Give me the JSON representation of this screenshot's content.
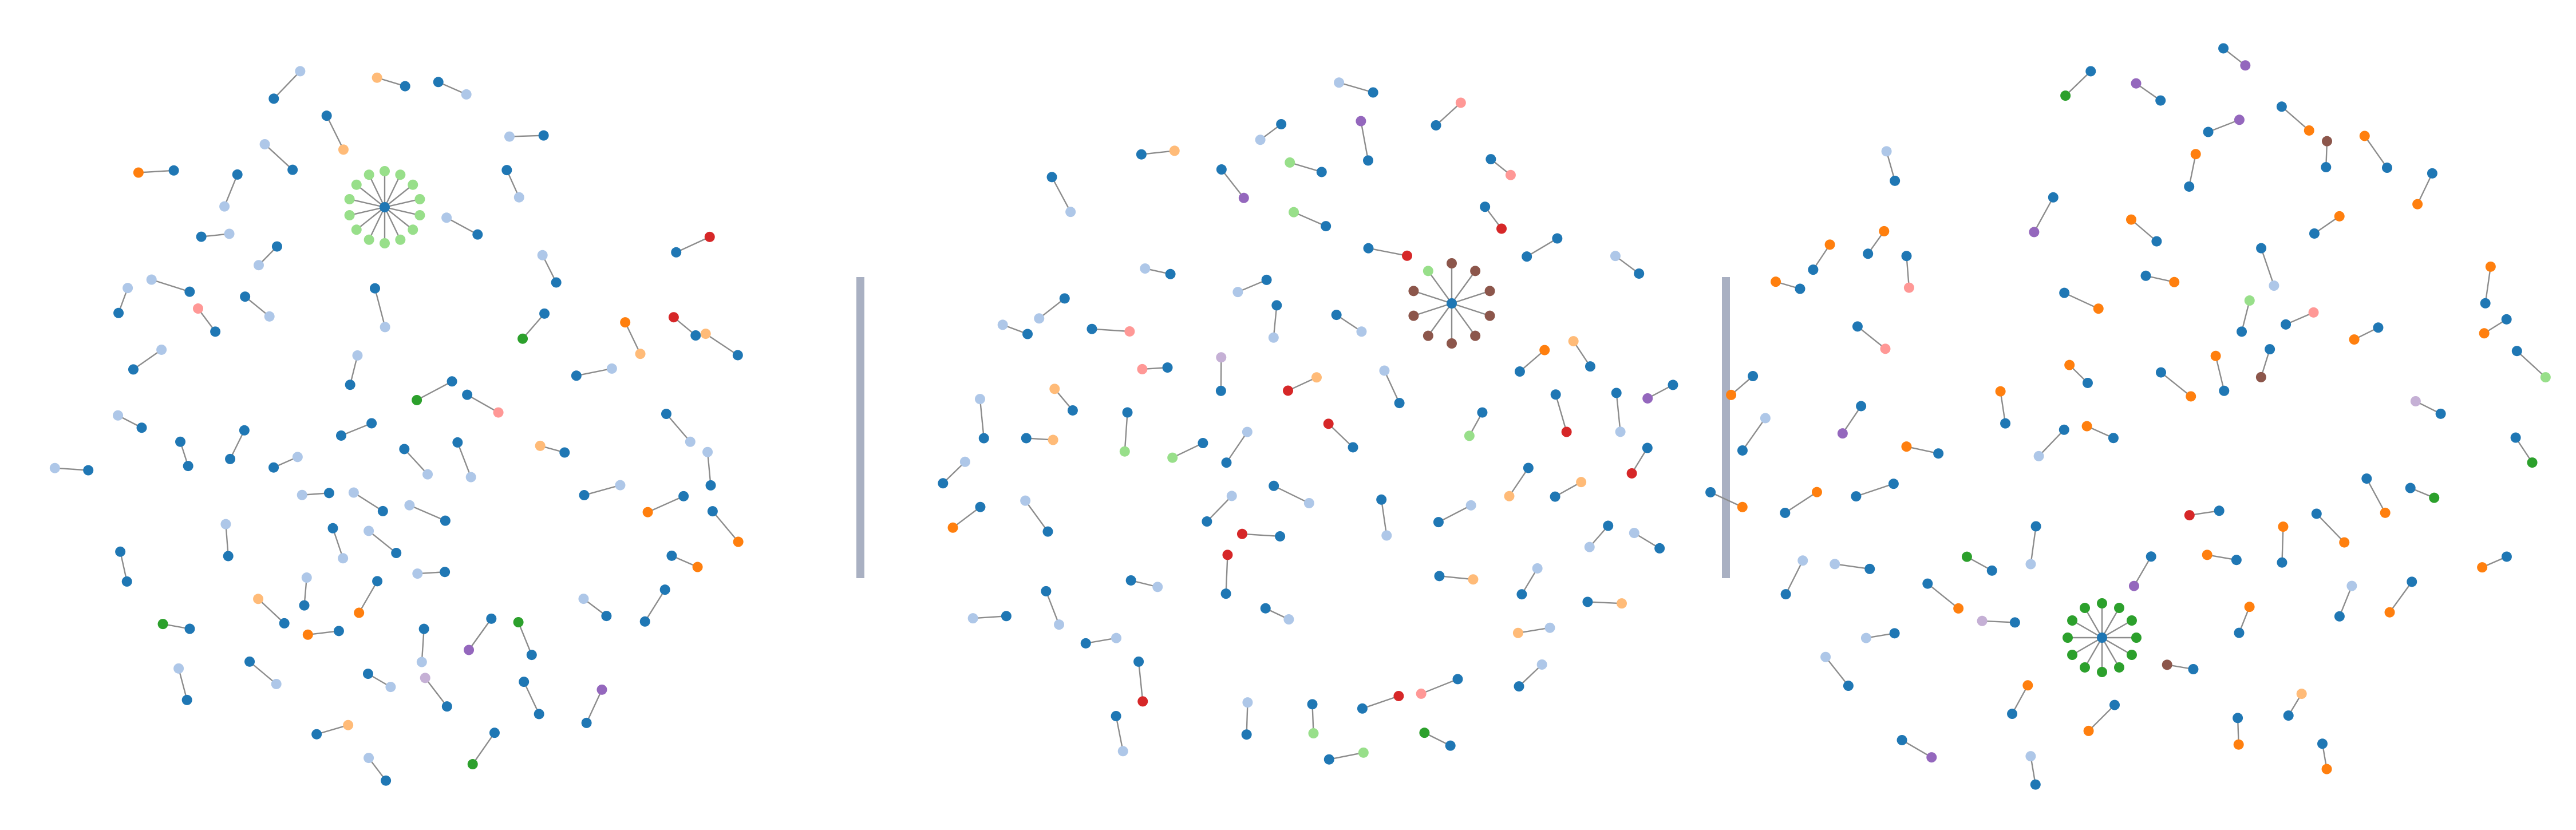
{
  "palette": {
    "edge": "#8c8c8c",
    "divider": "#a9b0c2",
    "background": "#ffffff",
    "blue": "#1f77b4",
    "lightblue": "#aec7e8",
    "orange": "#ff7f0e",
    "lightorange": "#ffbb78",
    "green": "#2ca02c",
    "lightgreen": "#98df8a",
    "red": "#d62728",
    "pink": "#ff9896",
    "purple": "#9467bd",
    "lavender": "#c5b0d5",
    "brown": "#8c564b"
  },
  "panels": [
    {
      "name": "left-graph",
      "star": {
        "center": "blue",
        "leaves": [
          "lightgreen",
          "lightgreen",
          "lightgreen",
          "lightgreen",
          "lightgreen",
          "lightgreen",
          "lightgreen",
          "lightgreen",
          "lightgreen",
          "lightgreen",
          "lightgreen",
          "lightgreen",
          "lightgreen",
          "lightgreen"
        ]
      },
      "pairs": [
        [
          "lightblue",
          "blue"
        ],
        [
          "blue",
          "orange"
        ],
        [
          "blue",
          "lightblue"
        ],
        [
          "blue",
          "green"
        ],
        [
          "purple",
          "blue"
        ],
        [
          "lightblue",
          "blue"
        ],
        [
          "blue",
          "lightblue"
        ],
        [
          "lightblue",
          "blue"
        ],
        [
          "blue",
          "lightblue"
        ],
        [
          "lightblue",
          "blue"
        ],
        [
          "blue",
          "lightblue"
        ],
        [
          "lightblue",
          "blue"
        ],
        [
          "blue",
          "lightblue"
        ],
        [
          "lightorange",
          "blue"
        ],
        [
          "blue",
          "blue"
        ],
        [
          "lightblue",
          "blue"
        ],
        [
          "blue",
          "lightblue"
        ],
        [
          "lightblue",
          "blue"
        ],
        [
          "blue",
          "orange"
        ],
        [
          "lightblue",
          "blue"
        ],
        [
          "lightblue",
          "blue"
        ],
        [
          "blue",
          "pink"
        ],
        [
          "lightblue",
          "blue"
        ],
        [
          "blue",
          "lightblue"
        ],
        [
          "blue",
          "blue"
        ],
        [
          "blue",
          "lightblue"
        ],
        [
          "blue",
          "lightblue"
        ],
        [
          "blue",
          "lightblue"
        ],
        [
          "blue",
          "red"
        ],
        [
          "blue",
          "orange"
        ],
        [
          "lightblue",
          "blue"
        ],
        [
          "lightorange",
          "blue"
        ],
        [
          "blue",
          "orange"
        ],
        [
          "blue",
          "blue"
        ],
        [
          "blue",
          "red"
        ],
        [
          "blue",
          "green"
        ],
        [
          "lightblue",
          "blue"
        ],
        [
          "blue",
          "lightblue"
        ],
        [
          "blue",
          "blue"
        ],
        [
          "blue",
          "green"
        ],
        [
          "blue",
          "lightblue"
        ],
        [
          "orange",
          "blue"
        ],
        [
          "lightblue",
          "blue"
        ],
        [
          "blue",
          "lightblue"
        ],
        [
          "blue",
          "lightblue"
        ],
        [
          "lightblue",
          "blue"
        ],
        [
          "lightorange",
          "blue"
        ],
        [
          "blue",
          "lightblue"
        ],
        [
          "lightblue",
          "blue"
        ],
        [
          "blue",
          "lightblue"
        ],
        [
          "pink",
          "blue"
        ],
        [
          "blue",
          "lightblue"
        ],
        [
          "blue",
          "orange"
        ],
        [
          "lightorange",
          "blue"
        ],
        [
          "blue",
          "lightblue"
        ],
        [
          "blue",
          "lavender"
        ],
        [
          "blue",
          "lightblue"
        ],
        [
          "lightorange",
          "blue"
        ],
        [
          "blue",
          "purple"
        ],
        [
          "green",
          "blue"
        ],
        [
          "blue",
          "lightblue"
        ],
        [
          "blue",
          "green"
        ],
        [
          "blue",
          "lightblue"
        ],
        [
          "blue",
          "lightblue"
        ],
        [
          "lightblue",
          "blue"
        ],
        [
          "blue",
          "blue"
        ],
        [
          "lightorange",
          "blue"
        ],
        [
          "lightorange",
          "orange"
        ],
        [
          "lightblue",
          "blue"
        ],
        [
          "blue",
          "blue"
        ]
      ]
    },
    {
      "name": "middle-graph",
      "star": {
        "center": "blue",
        "leaves": [
          "brown",
          "brown",
          "brown",
          "brown",
          "brown",
          "brown",
          "brown",
          "brown",
          "brown",
          "lightgreen"
        ]
      },
      "pairs": [
        [
          "blue",
          "lightorange"
        ],
        [
          "blue",
          "lightblue"
        ],
        [
          "blue",
          "pink"
        ],
        [
          "lightorange",
          "blue"
        ],
        [
          "blue",
          "red"
        ],
        [
          "lightblue",
          "blue"
        ],
        [
          "blue",
          "lightblue"
        ],
        [
          "lightblue",
          "blue"
        ],
        [
          "red",
          "blue"
        ],
        [
          "pink",
          "blue"
        ],
        [
          "blue",
          "lightblue"
        ],
        [
          "lightorange",
          "blue"
        ],
        [
          "blue",
          "red"
        ],
        [
          "lightblue",
          "blue"
        ],
        [
          "lightblue",
          "blue"
        ],
        [
          "lightblue",
          "blue"
        ],
        [
          "blue",
          "lightblue"
        ],
        [
          "lightgreen",
          "blue"
        ],
        [
          "blue",
          "red"
        ],
        [
          "lightblue",
          "blue"
        ],
        [
          "lightblue",
          "blue"
        ],
        [
          "pink",
          "blue"
        ],
        [
          "lightblue",
          "blue"
        ],
        [
          "lightorange",
          "blue"
        ],
        [
          "blue",
          "lightblue"
        ],
        [
          "red",
          "blue"
        ],
        [
          "blue",
          "orange"
        ],
        [
          "blue",
          "lightgreen"
        ],
        [
          "lightblue",
          "blue"
        ],
        [
          "blue",
          "lightblue"
        ],
        [
          "blue",
          "green"
        ],
        [
          "blue",
          "lightorange"
        ],
        [
          "lightgreen",
          "blue"
        ],
        [
          "lightblue",
          "blue"
        ],
        [
          "blue",
          "lightorange"
        ],
        [
          "lightorange",
          "red"
        ],
        [
          "blue",
          "lightblue"
        ],
        [
          "blue",
          "purple"
        ],
        [
          "blue",
          "lightblue"
        ],
        [
          "blue",
          "lightgreen"
        ],
        [
          "lightblue",
          "blue"
        ],
        [
          "blue",
          "blue"
        ],
        [
          "lightgreen",
          "blue"
        ],
        [
          "blue",
          "red"
        ],
        [
          "blue",
          "lightblue"
        ],
        [
          "lightorange",
          "blue"
        ],
        [
          "lavender",
          "blue"
        ],
        [
          "blue",
          "red"
        ],
        [
          "lightblue",
          "blue"
        ],
        [
          "blue",
          "lightblue"
        ],
        [
          "lightgreen",
          "blue"
        ],
        [
          "blue",
          "red"
        ],
        [
          "lightblue",
          "blue"
        ],
        [
          "pink",
          "blue"
        ],
        [
          "lightblue",
          "blue"
        ],
        [
          "blue",
          "lightblue"
        ],
        [
          "blue",
          "lightblue"
        ],
        [
          "lightblue",
          "blue"
        ],
        [
          "lightorange",
          "blue"
        ],
        [
          "purple",
          "blue"
        ],
        [
          "blue",
          "pink"
        ],
        [
          "lightblue",
          "blue"
        ],
        [
          "blue",
          "orange"
        ],
        [
          "blue",
          "lightblue"
        ],
        [
          "blue",
          "red"
        ],
        [
          "blue",
          "lightblue"
        ],
        [
          "blue",
          "purple"
        ],
        [
          "lightblue",
          "blue"
        ],
        [
          "blue",
          "lightgreen"
        ],
        [
          "lightblue",
          "lightorange"
        ]
      ]
    },
    {
      "name": "right-graph",
      "star": {
        "center": "blue",
        "leaves": [
          "green",
          "green",
          "green",
          "green",
          "green",
          "green",
          "green",
          "green",
          "green",
          "green",
          "green",
          "green"
        ]
      },
      "pairs": [
        [
          "blue",
          "orange"
        ],
        [
          "orange",
          "blue"
        ],
        [
          "blue",
          "orange"
        ],
        [
          "blue",
          "orange"
        ],
        [
          "blue",
          "orange"
        ],
        [
          "blue",
          "orange"
        ],
        [
          "purple",
          "blue"
        ],
        [
          "blue",
          "orange"
        ],
        [
          "green",
          "blue"
        ],
        [
          "lightgreen",
          "blue"
        ],
        [
          "lightblue",
          "blue"
        ],
        [
          "blue",
          "orange"
        ],
        [
          "orange",
          "blue"
        ],
        [
          "blue",
          "green"
        ],
        [
          "blue",
          "orange"
        ],
        [
          "orange",
          "blue"
        ],
        [
          "blue",
          "green"
        ],
        [
          "blue",
          "orange"
        ],
        [
          "purple",
          "blue"
        ],
        [
          "blue",
          "orange"
        ],
        [
          "blue",
          "lightblue"
        ],
        [
          "blue",
          "orange"
        ],
        [
          "blue",
          "orange"
        ],
        [
          "orange",
          "blue"
        ],
        [
          "blue",
          "green"
        ],
        [
          "blue",
          "purple"
        ],
        [
          "purple",
          "blue"
        ],
        [
          "blue",
          "orange"
        ],
        [
          "blue",
          "orange"
        ],
        [
          "orange",
          "blue"
        ],
        [
          "lightgreen",
          "blue"
        ],
        [
          "blue",
          "lightblue"
        ],
        [
          "blue",
          "orange"
        ],
        [
          "blue",
          "purple"
        ],
        [
          "blue",
          "orange"
        ],
        [
          "pink",
          "blue"
        ],
        [
          "blue",
          "orange"
        ],
        [
          "blue",
          "orange"
        ],
        [
          "lightblue",
          "blue"
        ],
        [
          "lavender",
          "blue"
        ],
        [
          "blue",
          "orange"
        ],
        [
          "blue",
          "orange"
        ],
        [
          "blue",
          "lightblue"
        ],
        [
          "blue",
          "orange"
        ],
        [
          "blue",
          "pink"
        ],
        [
          "blue",
          "orange"
        ],
        [
          "blue",
          "lavender"
        ],
        [
          "blue",
          "lightblue"
        ],
        [
          "blue",
          "red"
        ],
        [
          "lightorange",
          "blue"
        ],
        [
          "blue",
          "lightblue"
        ],
        [
          "blue",
          "pink"
        ],
        [
          "blue",
          "orange"
        ],
        [
          "blue",
          "orange"
        ],
        [
          "blue",
          "purple"
        ],
        [
          "lightblue",
          "blue"
        ],
        [
          "blue",
          "purple"
        ],
        [
          "blue",
          "orange"
        ],
        [
          "blue",
          "brown"
        ],
        [
          "orange",
          "blue"
        ],
        [
          "brown",
          "blue"
        ],
        [
          "brown",
          "blue"
        ],
        [
          "blue",
          "orange"
        ],
        [
          "blue",
          "lightblue"
        ],
        [
          "orange",
          "blue"
        ],
        [
          "lightblue",
          "blue"
        ],
        [
          "blue",
          "blue"
        ],
        [
          "orange",
          "blue"
        ],
        [
          "blue",
          "orange"
        ],
        [
          "blue",
          "lightblue"
        ]
      ]
    }
  ]
}
